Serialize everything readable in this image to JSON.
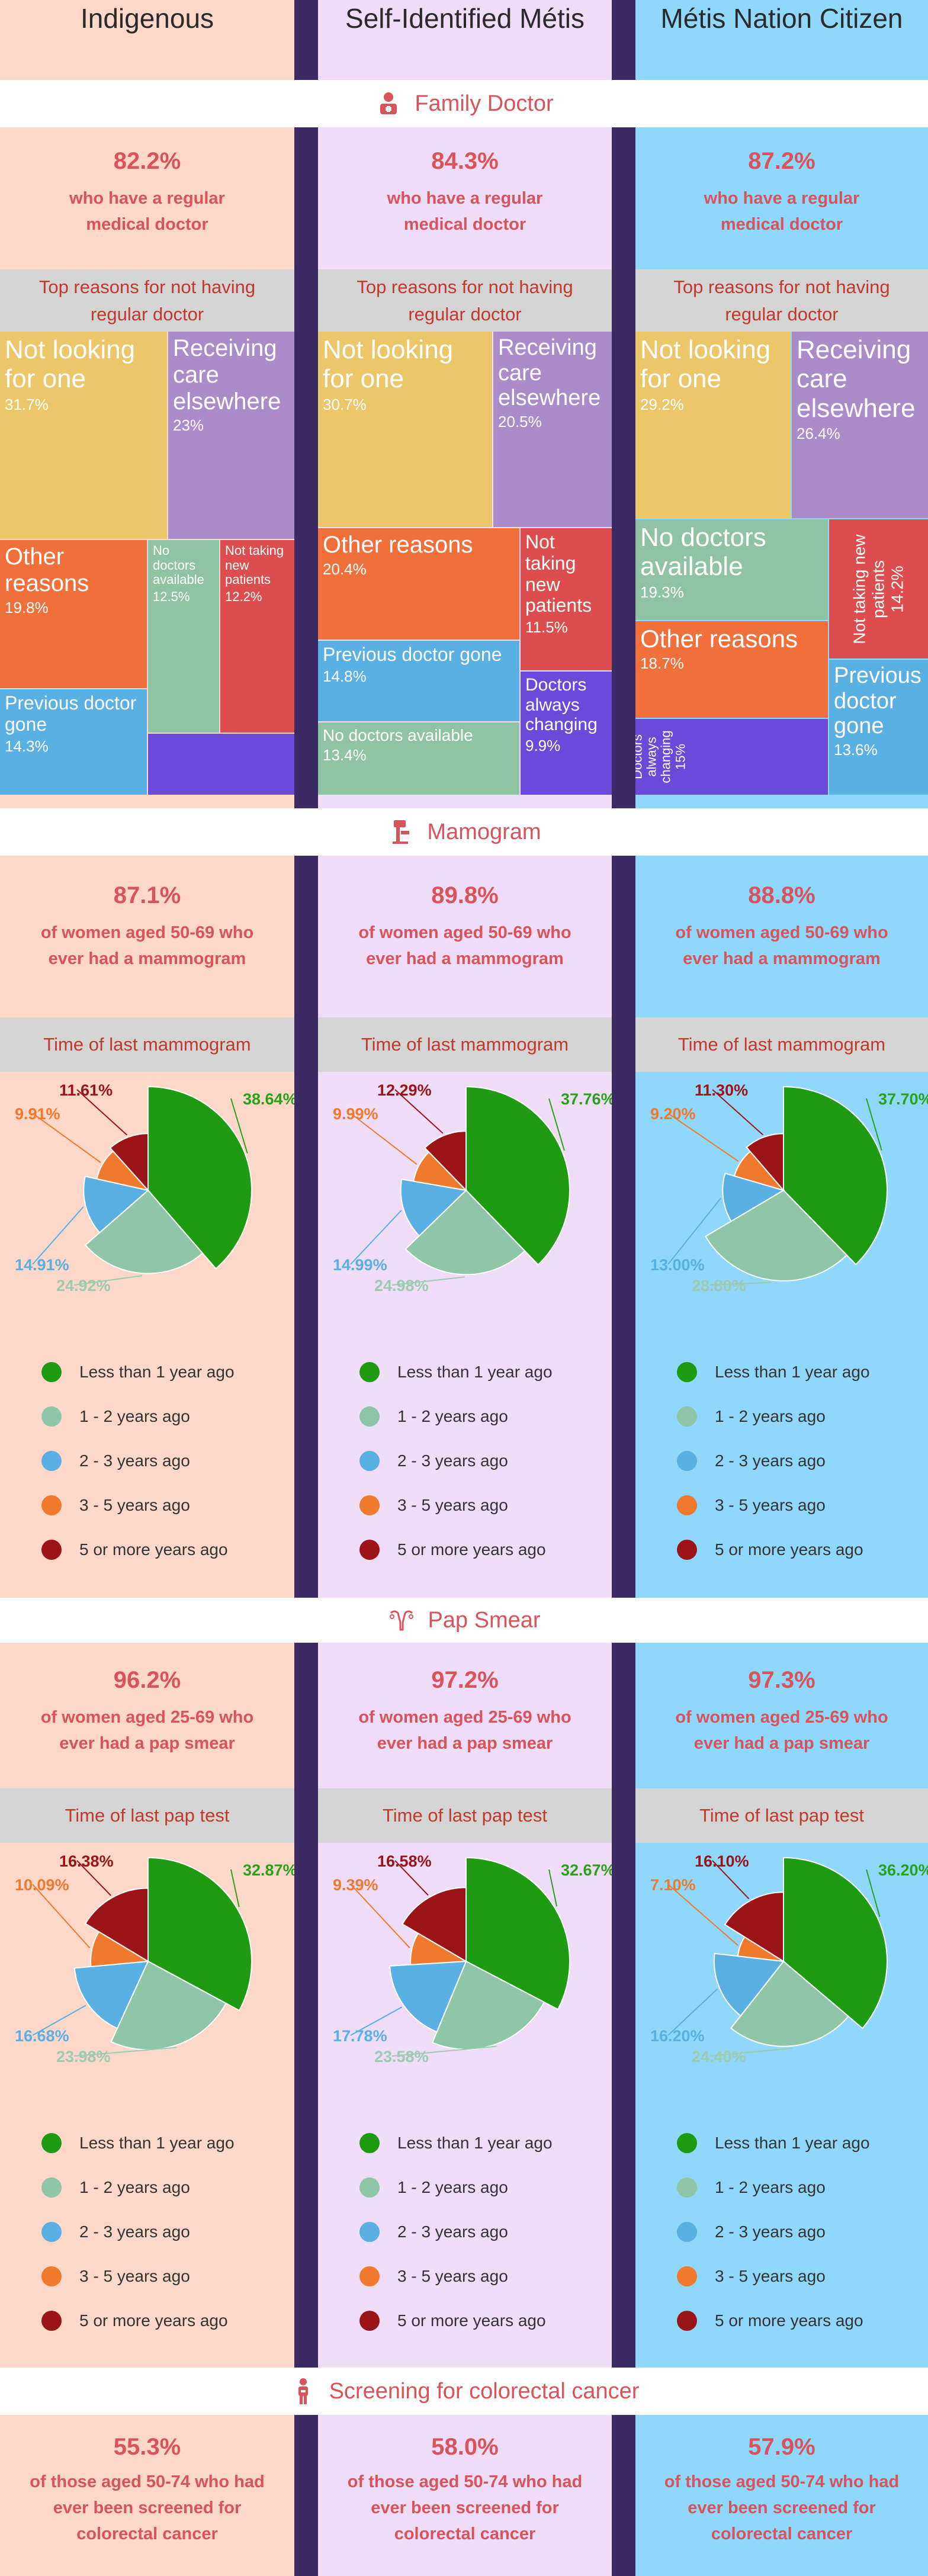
{
  "columns": [
    {
      "name": "Indigenous",
      "bg": "#fdd8c8"
    },
    {
      "name": "Self-Identified Métis",
      "bg": "#efdcf7"
    },
    {
      "name": "Métis Nation Citizen",
      "bg": "#8fd8fb"
    }
  ],
  "sections": {
    "family_doctor": "Family Doctor",
    "mammogram": "Mamogram",
    "pap_smear": "Pap Smear",
    "colorectal": "Screening for colorectal cancer"
  },
  "family_doctor": {
    "stats": [
      {
        "pct": "82.2%",
        "desc1": "who have a regular",
        "desc2": "medical doctor"
      },
      {
        "pct": "84.3%",
        "desc1": "who have a regular",
        "desc2": "medical doctor"
      },
      {
        "pct": "87.2%",
        "desc1": "who have a regular",
        "desc2": "medical doctor"
      }
    ],
    "reasons_title1": "Top reasons for not having",
    "reasons_title2": "regular doctor"
  },
  "mammogram": {
    "stats": [
      {
        "pct": "87.1%",
        "desc1": "of women aged 50-69 who",
        "desc2": "ever had a mammogram"
      },
      {
        "pct": "89.8%",
        "desc1": "of women aged 50-69 who",
        "desc2": "ever had a mammogram"
      },
      {
        "pct": "88.8%",
        "desc1": "of women aged 50-69 who",
        "desc2": "ever had a mammogram"
      }
    ],
    "panel_title": "Time of last mammogram"
  },
  "pap": {
    "stats": [
      {
        "pct": "96.2%",
        "desc1": "of women aged 25-69 who",
        "desc2": "ever had a pap smear"
      },
      {
        "pct": "97.2%",
        "desc1": "of women aged 25-69 who",
        "desc2": "ever had a pap smear"
      },
      {
        "pct": "97.3%",
        "desc1": "of women aged 25-69 who",
        "desc2": "ever had a pap smear"
      }
    ],
    "panel_title": "Time of last pap test"
  },
  "colorectal": {
    "stats": [
      {
        "pct": "55.3%",
        "desc1": "of those aged 50-74 who had",
        "desc2": "ever been screened for",
        "desc3": "colorectal cancer"
      },
      {
        "pct": "58.0%",
        "desc1": "of those aged 50-74 who had",
        "desc2": "ever been screened for",
        "desc3": "colorectal cancer"
      },
      {
        "pct": "57.9%",
        "desc1": "of those aged 50-74 who had",
        "desc2": "ever been screened for",
        "desc3": "colorectal cancer"
      }
    ]
  },
  "legend": [
    "Less than 1 year ago",
    "1 - 2 years ago",
    "2 - 3 years ago",
    "3 - 5 years ago",
    "5 or more years ago"
  ],
  "colors": {
    "accent": "#d9535b",
    "less1": "#1e9b12",
    "y12": "#8fc6a8",
    "y23": "#5aafe3",
    "y35": "#ef7a2e",
    "y5p": "#9b1418",
    "tm_yellow": "#ecc76a",
    "tm_purple": "#a98cc8",
    "tm_orange": "#f06f3a",
    "tm_green": "#8fc3a4",
    "tm_red": "#dd4d4f",
    "tm_blue": "#5aafe3",
    "tm_violet": "#6a4ad9"
  },
  "chart_data": [
    {
      "type": "treemap",
      "title": "Top reasons for not having regular doctor",
      "group": "Indigenous",
      "items": [
        {
          "label": "Not looking for one",
          "value": "31.7%"
        },
        {
          "label": "Receiving care elsewhere",
          "value": "23%"
        },
        {
          "label": "Other reasons",
          "value": "19.8%"
        },
        {
          "label": "No doctors available",
          "value": "12.5%"
        },
        {
          "label": "Not taking new patients",
          "value": "12.2%"
        },
        {
          "label": "Previous doctor gone",
          "value": "14.3%"
        }
      ]
    },
    {
      "type": "treemap",
      "title": "Top reasons for not having regular doctor",
      "group": "Self-Identified Métis",
      "items": [
        {
          "label": "Not looking for one",
          "value": "30.7%"
        },
        {
          "label": "Receiving care elsewhere",
          "value": "20.5%"
        },
        {
          "label": "Other reasons",
          "value": "20.4%"
        },
        {
          "label": "Not taking new patients",
          "value": "11.5%"
        },
        {
          "label": "Previous doctor gone",
          "value": "14.8%"
        },
        {
          "label": "No doctors available",
          "value": "13.4%"
        },
        {
          "label": "Doctors always changing",
          "value": "9.9%"
        }
      ]
    },
    {
      "type": "treemap",
      "title": "Top reasons for not having regular doctor",
      "group": "Métis Nation Citizen",
      "items": [
        {
          "label": "Not looking for one",
          "value": "29.2%"
        },
        {
          "label": "Receiving care elsewhere",
          "value": "26.4%"
        },
        {
          "label": "No doctors available",
          "value": "19.3%"
        },
        {
          "label": "Not taking new patients",
          "value": "14.2%"
        },
        {
          "label": "Other reasons",
          "value": "18.7%"
        },
        {
          "label": "Doctors always changing",
          "value": "15%"
        },
        {
          "label": "Previous doctor gone",
          "value": "13.6%"
        }
      ]
    },
    {
      "type": "pie",
      "title": "Time of last mammogram",
      "group": "Indigenous",
      "labels": [
        "Less than 1 year ago",
        "1 - 2 years ago",
        "2 - 3 years ago",
        "3 - 5 years ago",
        "5 or more years ago"
      ],
      "values": [
        38.64,
        24.92,
        14.91,
        9.91,
        11.61
      ]
    },
    {
      "type": "pie",
      "title": "Time of last mammogram",
      "group": "Self-Identified Métis",
      "labels": [
        "Less than 1 year ago",
        "1 - 2 years ago",
        "2 - 3 years ago",
        "3 - 5 years ago",
        "5 or more years ago"
      ],
      "values": [
        37.76,
        24.98,
        14.99,
        9.99,
        12.29
      ]
    },
    {
      "type": "pie",
      "title": "Time of last mammogram",
      "group": "Métis Nation Citizen",
      "labels": [
        "Less than 1 year ago",
        "1 - 2 years ago",
        "2 - 3 years ago",
        "3 - 5 years ago",
        "5 or more years ago"
      ],
      "values": [
        37.7,
        28.8,
        13.0,
        9.2,
        11.3
      ]
    },
    {
      "type": "pie",
      "title": "Time of last pap test",
      "group": "Indigenous",
      "labels": [
        "Less than 1 year ago",
        "1 - 2 years ago",
        "2 - 3 years ago",
        "3 - 5 years ago",
        "5 or more years ago"
      ],
      "values": [
        32.87,
        23.98,
        16.68,
        10.09,
        16.38
      ]
    },
    {
      "type": "pie",
      "title": "Time of last pap test",
      "group": "Self-Identified Métis",
      "labels": [
        "Less than 1 year ago",
        "1 - 2 years ago",
        "2 - 3 years ago",
        "3 - 5 years ago",
        "5 or more years ago"
      ],
      "values": [
        32.67,
        23.58,
        17.78,
        9.39,
        16.58
      ]
    },
    {
      "type": "pie",
      "title": "Time of last pap test",
      "group": "Métis Nation Citizen",
      "labels": [
        "Less than 1 year ago",
        "1 - 2 years ago",
        "2 - 3 years ago",
        "3 - 5 years ago",
        "5 or more years ago"
      ],
      "values": [
        36.2,
        24.4,
        16.2,
        7.1,
        16.1
      ]
    }
  ]
}
